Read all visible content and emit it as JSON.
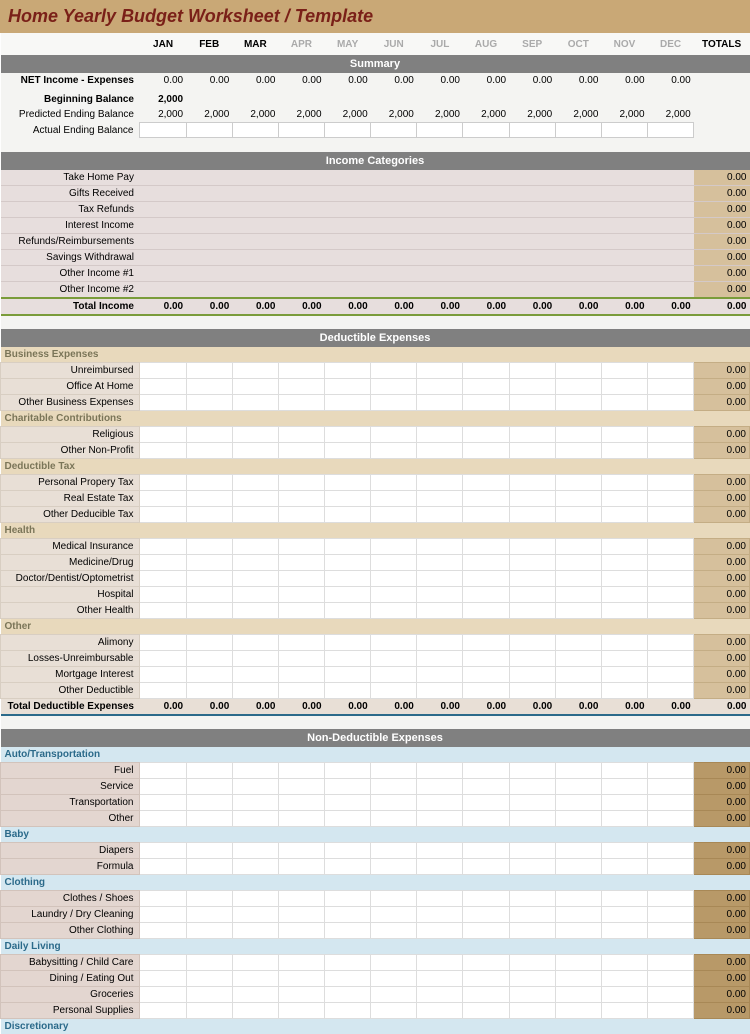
{
  "title": "Home Yearly Budget Worksheet / Template",
  "months": [
    "JAN",
    "FEB",
    "MAR",
    "APR",
    "MAY",
    "JUN",
    "JUL",
    "AUG",
    "SEP",
    "OCT",
    "NOV",
    "DEC"
  ],
  "active_months": 3,
  "totals_label": "TOTALS",
  "zero": "0.00",
  "val2000": "2,000",
  "summary": {
    "header": "Summary",
    "net_label": "NET Income - Expenses",
    "beginning_label": "Beginning Balance",
    "predicted_label": "Predicted Ending Balance",
    "actual_label": "Actual Ending Balance"
  },
  "income": {
    "header": "Income Categories",
    "rows": [
      "Take Home Pay",
      "Gifts Received",
      "Tax Refunds",
      "Interest Income",
      "Refunds/Reimbursements",
      "Savings Withdrawal",
      "Other Income #1",
      "Other Income #2"
    ],
    "total_label": "Total Income"
  },
  "deductible": {
    "header": "Deductible Expenses",
    "groups": [
      {
        "name": "Business Expenses",
        "rows": [
          "Unreimbursed",
          "Office At Home",
          "Other Business Expenses"
        ]
      },
      {
        "name": "Charitable Contributions",
        "rows": [
          "Religious",
          "Other Non-Profit"
        ]
      },
      {
        "name": "Deductible Tax",
        "rows": [
          "Personal Propery Tax",
          "Real Estate Tax",
          "Other Deducible Tax"
        ]
      },
      {
        "name": "Health",
        "rows": [
          "Medical Insurance",
          "Medicine/Drug",
          "Doctor/Dentist/Optometrist",
          "Hospital",
          "Other Health"
        ]
      },
      {
        "name": "Other",
        "rows": [
          "Alimony",
          "Losses-Unreimbursable",
          "Mortgage Interest",
          "Other Deductible"
        ]
      }
    ],
    "total_label": "Total Deductible Expenses"
  },
  "nondeductible": {
    "header": "Non-Deductible Expenses",
    "groups": [
      {
        "name": "Auto/Transportation",
        "rows": [
          "Fuel",
          "Service",
          "Transportation",
          "Other"
        ]
      },
      {
        "name": "Baby",
        "rows": [
          "Diapers",
          "Formula"
        ]
      },
      {
        "name": "Clothing",
        "rows": [
          "Clothes / Shoes",
          "Laundry / Dry Cleaning",
          "Other Clothing"
        ]
      },
      {
        "name": "Daily Living",
        "rows": [
          "Babysitting / Child Care",
          "Dining / Eating Out",
          "Groceries",
          "Personal Supplies"
        ]
      },
      {
        "name": "Discretionary",
        "rows": []
      }
    ]
  }
}
